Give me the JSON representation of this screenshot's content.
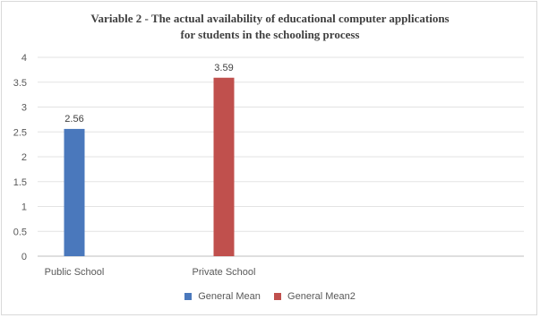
{
  "chart_data": {
    "type": "bar",
    "title_line1": "Variable 2 - The actual availability of educational computer applications",
    "title_line2": "for students in the schooling process",
    "categories": [
      "Public School",
      "Private School"
    ],
    "series": [
      {
        "name": "General Mean",
        "color": "#4a78bc",
        "values": [
          2.56,
          null
        ]
      },
      {
        "name": "General Mean2",
        "color": "#c0504d",
        "values": [
          null,
          3.59
        ]
      }
    ],
    "data_labels": [
      "2.56",
      "3.59"
    ],
    "y_ticks": [
      "0",
      "0.5",
      "1",
      "1.5",
      "2",
      "2.5",
      "3",
      "3.5",
      "4"
    ],
    "ylim": [
      0,
      4
    ],
    "grid": true,
    "legend_position": "bottom",
    "xlabel": "",
    "ylabel": ""
  }
}
